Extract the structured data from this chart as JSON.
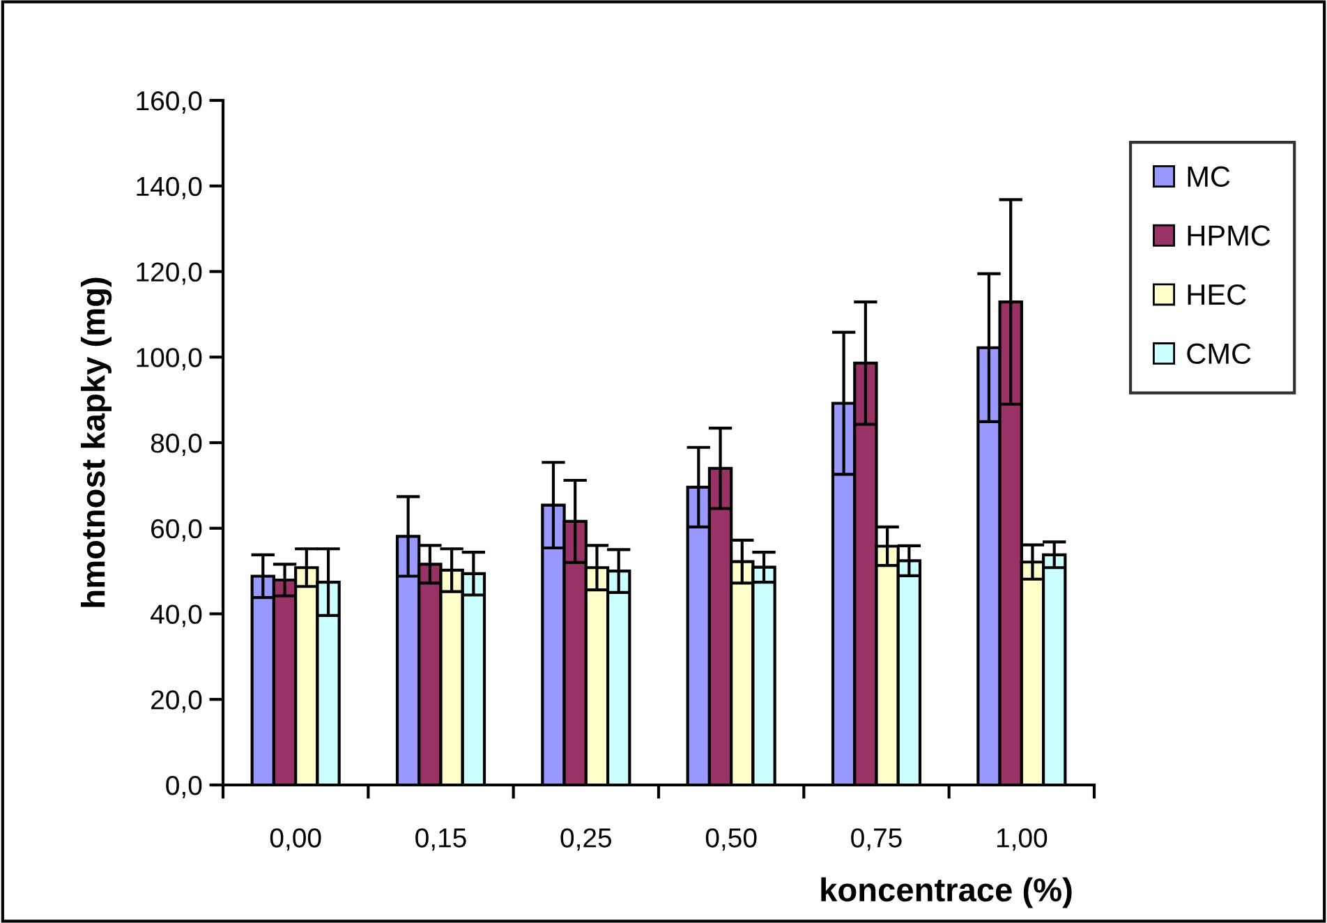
{
  "chart_data": {
    "type": "bar",
    "xlabel": "koncentrace (%)",
    "ylabel": "hmotnost kapky (mg)",
    "categories": [
      "0,00",
      "0,15",
      "0,25",
      "0,50",
      "0,75",
      "1,00"
    ],
    "series": [
      {
        "name": "MC",
        "color": "#9999ff",
        "values": [
          48.8,
          58.1,
          65.4,
          69.6,
          89.2,
          102.2
        ],
        "errors": [
          5,
          9.3,
          10,
          9.3,
          16.6,
          17.3
        ]
      },
      {
        "name": "HPMC",
        "color": "#993366",
        "values": [
          47.9,
          51.6,
          61.6,
          74.0,
          98.6,
          112.9
        ],
        "errors": [
          3.7,
          4.4,
          9.6,
          9.4,
          14.3,
          23.9
        ]
      },
      {
        "name": "HEC",
        "color": "#ffffcc",
        "values": [
          50.8,
          50.2,
          50.8,
          52.2,
          55.8,
          52.1
        ],
        "errors": [
          4.4,
          5,
          5.2,
          5,
          4.5,
          4
        ]
      },
      {
        "name": "CMC",
        "color": "#ccffff",
        "values": [
          47.4,
          49.4,
          50.0,
          50.9,
          52.4,
          53.8
        ],
        "errors": [
          7.8,
          5,
          5,
          3.5,
          3.5,
          3
        ]
      }
    ],
    "ylim": [
      0,
      160
    ],
    "yticks": [
      {
        "value": 0,
        "label": "0,0"
      },
      {
        "value": 20,
        "label": "20,0"
      },
      {
        "value": 40,
        "label": "40,0"
      },
      {
        "value": 60,
        "label": "60,0"
      },
      {
        "value": 80,
        "label": "80,0"
      },
      {
        "value": 100,
        "label": "100,0"
      },
      {
        "value": 120,
        "label": "120,0"
      },
      {
        "value": 140,
        "label": "140,0"
      },
      {
        "value": 160,
        "label": "160,0"
      }
    ],
    "grid": false,
    "legend": "right"
  }
}
